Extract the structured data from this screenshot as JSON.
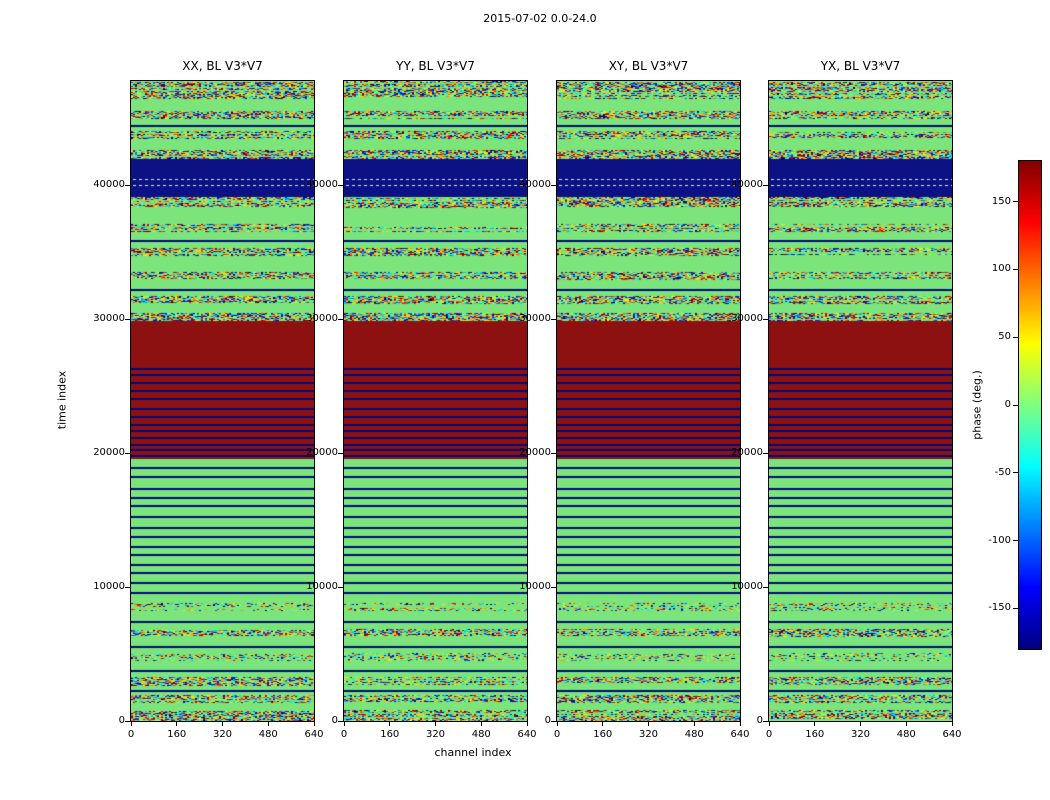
{
  "chart_data": {
    "type": "heatmap",
    "suptitle": "2015-07-02 0.0-24.0",
    "xlabel": "channel index",
    "ylabel": "time index",
    "xlim": [
      0,
      640
    ],
    "ylim": [
      0,
      47800
    ],
    "xticks": [
      0,
      160,
      320,
      480,
      640
    ],
    "yticks": [
      0,
      10000,
      20000,
      30000,
      40000
    ],
    "panels": [
      {
        "id": "XX",
        "title": "XX, BL V3*V7"
      },
      {
        "id": "YY",
        "title": "YY, BL V3*V7"
      },
      {
        "id": "XY",
        "title": "XY, BL V3*V7"
      },
      {
        "id": "YX",
        "title": "YX, BL V3*V7"
      }
    ],
    "colorbar": {
      "label": "phase (deg.)",
      "vmin": -180,
      "vmax": 180,
      "ticks": [
        150,
        100,
        50,
        0,
        -50,
        -100,
        -150
      ],
      "colormap": "jet",
      "gradient": [
        [
          "#000080",
          0
        ],
        [
          "#0000ff",
          0.125
        ],
        [
          "#00ffff",
          0.375
        ],
        [
          "#ffff00",
          0.625
        ],
        [
          "#ff0000",
          0.875
        ],
        [
          "#800000",
          1
        ]
      ]
    },
    "value_legend": {
      "green_phase_deg": 0,
      "red_phase_deg": 180,
      "navy_phase_deg": -180,
      "speckle": "random phase (noisy scans)"
    },
    "render": {
      "green": "#7be47b",
      "red": "#8d1111",
      "navy": "#0c1183",
      "line_color": "#000a78",
      "speckle_palette": [
        "#00008c",
        "#0018e8",
        "#0070ff",
        "#00c0ff",
        "#00f0c8",
        "#50ff9a",
        "#7be47b",
        "#a8f050",
        "#dcf020",
        "#ffd800",
        "#ff9000",
        "#ff4800",
        "#e00800",
        "#8c0000"
      ]
    },
    "bands": [
      {
        "t0": 0,
        "t1": 850,
        "kind": "speckle",
        "density": 0.85
      },
      {
        "t0": 850,
        "t1": 1350,
        "kind": "green"
      },
      {
        "t0": 1350,
        "t1": 1950,
        "kind": "speckle",
        "density": 0.8
      },
      {
        "t0": 1950,
        "t1": 2650,
        "kind": "green",
        "lines": [
          2300
        ]
      },
      {
        "t0": 2650,
        "t1": 3250,
        "kind": "speckle",
        "density": 0.8
      },
      {
        "t0": 3250,
        "t1": 4450,
        "kind": "green",
        "lines": [
          3800
        ]
      },
      {
        "t0": 4450,
        "t1": 5050,
        "kind": "speckle",
        "density": 0.45
      },
      {
        "t0": 5050,
        "t1": 6250,
        "kind": "green",
        "lines": [
          5600
        ]
      },
      {
        "t0": 6250,
        "t1": 6850,
        "kind": "speckle",
        "density": 0.8
      },
      {
        "t0": 6850,
        "t1": 8250,
        "kind": "green",
        "lines": [
          7500
        ]
      },
      {
        "t0": 8250,
        "t1": 8850,
        "kind": "speckle",
        "density": 0.4
      },
      {
        "t0": 8850,
        "t1": 19600,
        "kind": "green",
        "lines": [
          9600,
          10400,
          11100,
          11700,
          12500,
          13100,
          13800,
          14500,
          15300,
          16100,
          16700,
          17400,
          18300,
          19000
        ]
      },
      {
        "t0": 19600,
        "t1": 29850,
        "kind": "solid",
        "color": "#8d1111",
        "lineColor": "#000a78",
        "lines": [
          19900,
          20300,
          20700,
          21200,
          21700,
          22200,
          22800,
          23400,
          24100,
          24700,
          25300,
          25900,
          26400
        ]
      },
      {
        "t0": 29850,
        "t1": 30500,
        "kind": "speckle",
        "density": 0.9
      },
      {
        "t0": 30500,
        "t1": 31150,
        "kind": "green"
      },
      {
        "t0": 31150,
        "t1": 31750,
        "kind": "speckle",
        "density": 0.85
      },
      {
        "t0": 31750,
        "t1": 32950,
        "kind": "green",
        "lines": [
          32300
        ]
      },
      {
        "t0": 32950,
        "t1": 33550,
        "kind": "speckle",
        "density": 0.85
      },
      {
        "t0": 33550,
        "t1": 34750,
        "kind": "green"
      },
      {
        "t0": 34750,
        "t1": 35350,
        "kind": "speckle",
        "density": 0.85
      },
      {
        "t0": 35350,
        "t1": 36550,
        "kind": "green",
        "lines": [
          35900
        ]
      },
      {
        "t0": 36550,
        "t1": 37150,
        "kind": "speckle",
        "density": 0.85
      },
      {
        "t0": 37150,
        "t1": 38350,
        "kind": "green"
      },
      {
        "t0": 38350,
        "t1": 39150,
        "kind": "speckle",
        "density": 0.9
      },
      {
        "t0": 39150,
        "t1": 41950,
        "kind": "solid",
        "color": "#0c1183",
        "lineColor": "#dde6ff",
        "dashed": true,
        "lines": [
          40000,
          40450
        ]
      },
      {
        "t0": 41950,
        "t1": 42650,
        "kind": "speckle",
        "density": 0.9
      },
      {
        "t0": 42650,
        "t1": 43450,
        "kind": "green"
      },
      {
        "t0": 43450,
        "t1": 44050,
        "kind": "speckle",
        "density": 0.85
      },
      {
        "t0": 44050,
        "t1": 44950,
        "kind": "green",
        "lines": [
          44500
        ]
      },
      {
        "t0": 44950,
        "t1": 45550,
        "kind": "speckle",
        "density": 0.85
      },
      {
        "t0": 45550,
        "t1": 46450,
        "kind": "green"
      },
      {
        "t0": 46450,
        "t1": 47800,
        "kind": "speckle",
        "density": 0.9
      }
    ]
  }
}
